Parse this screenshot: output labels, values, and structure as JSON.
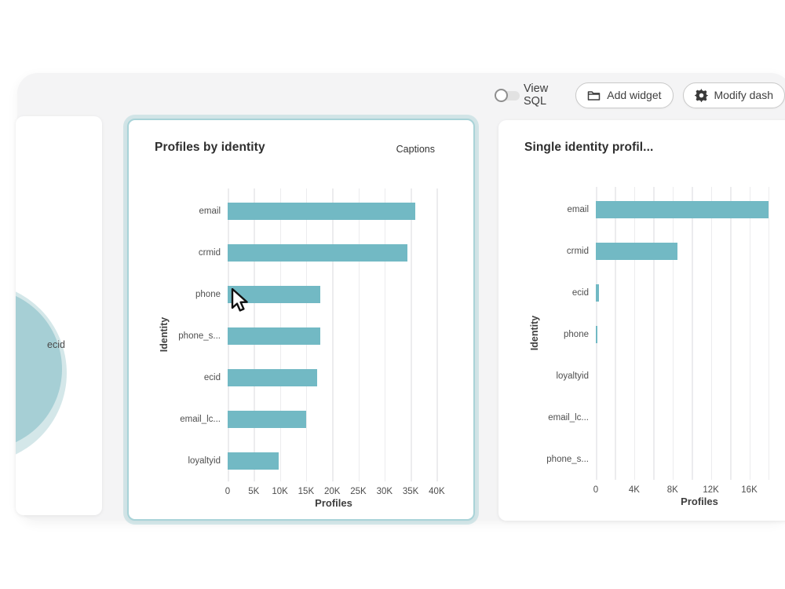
{
  "toolbar": {
    "view_sql_label": "View SQL",
    "view_sql_toggle_state": "off",
    "add_widget_label": "Add widget",
    "modify_dashboard_label": "Modify dash"
  },
  "left_widget": {
    "segment_label": "ecid"
  },
  "colors": {
    "bar_teal": "#72b9c4",
    "selected_card_glow": "#a9d3d8",
    "donut_main": "#a6cfd5",
    "donut_halo": "#d4e7e9",
    "dashboard_background": "#f4f4f5"
  },
  "chart_data": [
    {
      "type": "bar",
      "orientation": "horizontal",
      "title": "Profiles by identity",
      "caption_link": "Captions",
      "categories": [
        "email",
        "crmid",
        "phone",
        "phone_s...",
        "ecid",
        "email_lc...",
        "loyaltyid"
      ],
      "values": [
        35900,
        34400,
        17700,
        17650,
        17100,
        15000,
        9800
      ],
      "xlabel": "Profiles",
      "ylabel": "Identity",
      "xtick_labels": [
        "0",
        "5K",
        "10K",
        "15K",
        "20K",
        "25K",
        "30K",
        "35K",
        "40K"
      ],
      "xtick_values": [
        0,
        5000,
        10000,
        15000,
        20000,
        25000,
        30000,
        35000,
        40000
      ],
      "xlim": [
        0,
        40800
      ],
      "grid": true,
      "grid_step": 5000,
      "legend": "none",
      "bar_color": "#72b9c4"
    },
    {
      "type": "bar",
      "orientation": "horizontal",
      "title": "Single identity profil...",
      "categories": [
        "email",
        "crmid",
        "ecid",
        "phone",
        "loyaltyid",
        "email_lc...",
        "phone_s..."
      ],
      "values": [
        18000,
        8500,
        330,
        150,
        0,
        0,
        0
      ],
      "xlabel": "Profiles",
      "ylabel": "Identity",
      "xtick_labels": [
        "0",
        "4K",
        "8K",
        "12K",
        "16K"
      ],
      "xtick_values": [
        0,
        4000,
        8000,
        12000,
        16000
      ],
      "xlim": [
        0,
        22900
      ],
      "grid": true,
      "grid_step": 2000,
      "legend": "none",
      "bar_color": "#72b9c4"
    }
  ]
}
